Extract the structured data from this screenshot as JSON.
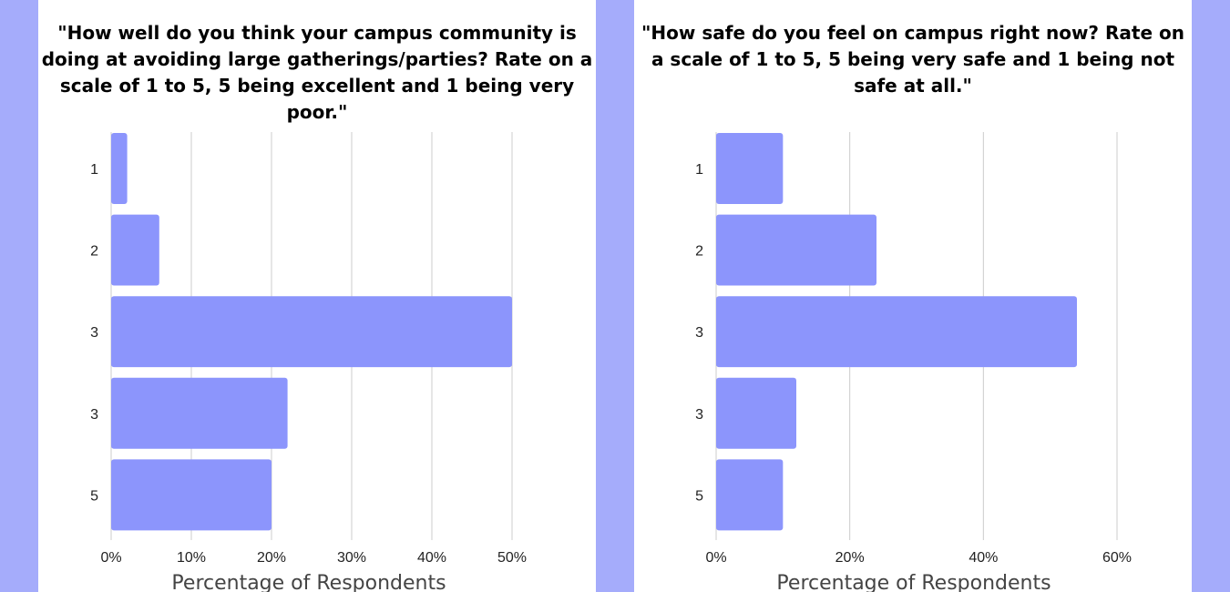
{
  "chart_data": [
    {
      "type": "bar",
      "orientation": "horizontal",
      "title": "\"How well do you think your campus community is doing at avoiding large gatherings/parties? Rate on a scale of 1 to 5, 5 being excellent and 1 being very poor.\"",
      "categories": [
        "1",
        "2",
        "3",
        "3",
        "5"
      ],
      "values": [
        2,
        6,
        50,
        22,
        20
      ],
      "xlabel": "Percentage of Respondents",
      "ylabel": "",
      "xlim": [
        0,
        50
      ],
      "xticks": [
        "0%",
        "10%",
        "20%",
        "30%",
        "40%",
        "50%"
      ],
      "grid": "vertical",
      "bar_color": "#8c95fc"
    },
    {
      "type": "bar",
      "orientation": "horizontal",
      "title": "\"How safe do you feel on campus right now? Rate on a scale of 1 to 5, 5 being very safe and 1 being not safe at all.\"",
      "categories": [
        "1",
        "2",
        "3",
        "3",
        "5"
      ],
      "values": [
        10,
        24,
        54,
        12,
        10
      ],
      "xlabel": "Percentage of Respondents",
      "ylabel": "",
      "xlim": [
        0,
        60
      ],
      "xticks": [
        "0%",
        "20%",
        "40%",
        "60%"
      ],
      "grid": "vertical",
      "bar_color": "#8c95fc"
    }
  ],
  "colors": {
    "page_background": "#a5acfb",
    "panel_background": "#ffffff",
    "gridline": "#cccccc"
  }
}
